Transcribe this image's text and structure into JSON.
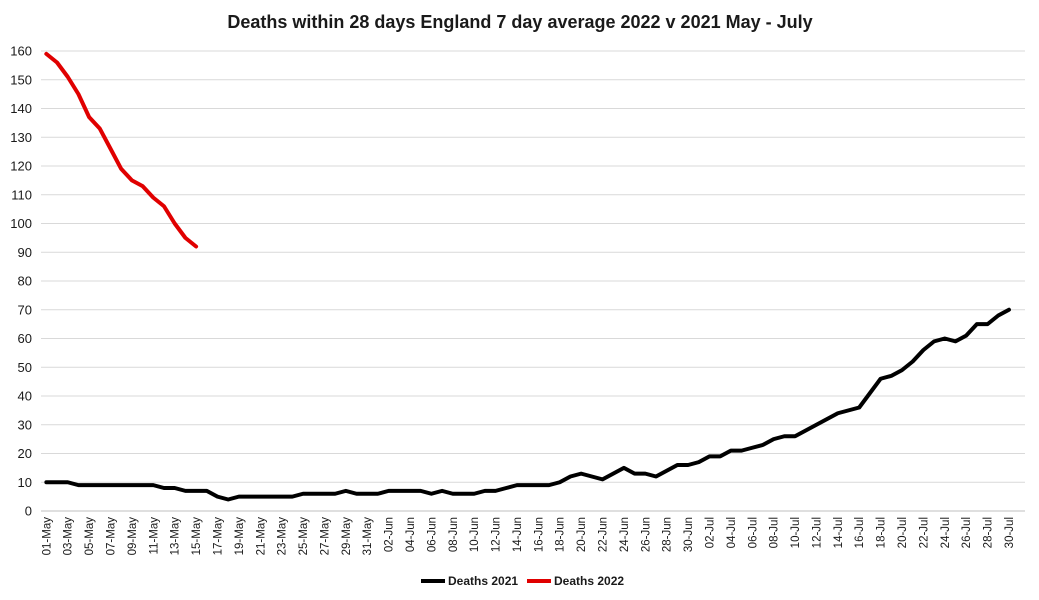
{
  "chart_data": {
    "type": "line",
    "title": "Deaths within 28 days England 7 day average 2022 v 2021 May - July",
    "xlabel": "",
    "ylabel": "",
    "ylim": [
      0,
      160
    ],
    "y_ticks": [
      "0",
      "10",
      "20",
      "30",
      "40",
      "50",
      "60",
      "70",
      "80",
      "90",
      "100",
      "110",
      "120",
      "130",
      "140",
      "150",
      "160"
    ],
    "grid": "horizontal",
    "legend_position": "bottom",
    "x_tick_labels": [
      "01-May",
      "03-May",
      "05-May",
      "07-May",
      "09-May",
      "11-May",
      "13-May",
      "15-May",
      "17-May",
      "19-May",
      "21-May",
      "23-May",
      "25-May",
      "27-May",
      "29-May",
      "31-May",
      "02-Jun",
      "04-Jun",
      "06-Jun",
      "08-Jun",
      "10-Jun",
      "12-Jun",
      "14-Jun",
      "16-Jun",
      "18-Jun",
      "20-Jun",
      "22-Jun",
      "24-Jun",
      "26-Jun",
      "28-Jun",
      "30-Jun",
      "02-Jul",
      "04-Jul",
      "06-Jul",
      "08-Jul",
      "10-Jul",
      "12-Jul",
      "14-Jul",
      "16-Jul",
      "18-Jul",
      "20-Jul",
      "22-Jul",
      "24-Jul",
      "26-Jul",
      "28-Jul",
      "30-Jul"
    ],
    "series": [
      {
        "name": "Deaths 2021",
        "color": "#000000",
        "values": [
          10,
          10,
          10,
          9,
          9,
          9,
          9,
          9,
          9,
          9,
          9,
          8,
          8,
          7,
          7,
          7,
          5,
          4,
          5,
          5,
          5,
          5,
          5,
          5,
          6,
          6,
          6,
          6,
          7,
          6,
          6,
          6,
          7,
          7,
          7,
          7,
          6,
          7,
          6,
          6,
          6,
          7,
          7,
          8,
          9,
          9,
          9,
          9,
          10,
          12,
          13,
          12,
          11,
          13,
          15,
          13,
          13,
          12,
          14,
          16,
          16,
          17,
          19,
          19,
          21,
          21,
          22,
          23,
          25,
          26,
          26,
          28,
          30,
          32,
          34,
          35,
          36,
          41,
          46,
          47,
          49,
          52,
          56,
          59,
          60,
          59,
          61,
          65,
          65,
          68,
          70
        ]
      },
      {
        "name": "Deaths 2022",
        "color": "#e00000",
        "values": [
          159,
          156,
          151,
          145,
          137,
          133,
          126,
          119,
          115,
          113,
          109,
          106,
          100,
          95,
          92
        ]
      }
    ]
  }
}
